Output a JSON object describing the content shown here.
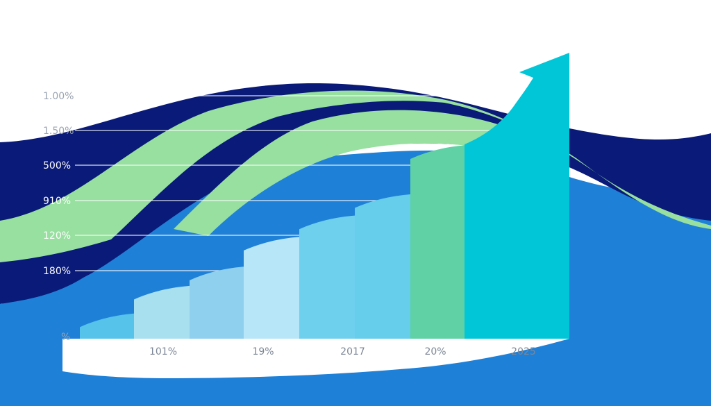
{
  "colors": {
    "background": "#ffffff",
    "navy_band": "#0a1a78",
    "green_band": "#97e0a0",
    "blue_wave": "#1f80d8",
    "arrow": "#00c6d8",
    "gridline": "#ffffff"
  },
  "chart_data": {
    "type": "bar",
    "grid": true,
    "y_tick_labels": [
      "1.00%",
      "1.50%",
      "500%",
      "910%",
      "120%",
      "180%",
      "%"
    ],
    "x_tick_labels": [
      "101%",
      "19%",
      "2017",
      "20%",
      "2025"
    ],
    "bars": [
      {
        "value": 1,
        "color": "#56c3ea"
      },
      {
        "value": 2.3,
        "color": "#a8e0f0"
      },
      {
        "value": 3.2,
        "color": "#8fd0ee"
      },
      {
        "value": 4.6,
        "color": "#b6e6f7"
      },
      {
        "value": 5.6,
        "color": "#6fd0ee"
      },
      {
        "value": 6.6,
        "color": "#66cdeb"
      },
      {
        "value": 8.9,
        "color": "#5fd1a4"
      },
      {
        "value": 10.3,
        "color": "#00c6d8"
      }
    ],
    "trend_arrow": "up"
  }
}
